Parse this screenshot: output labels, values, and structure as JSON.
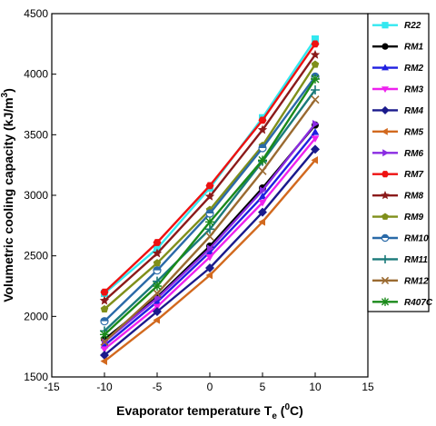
{
  "chart_data": {
    "type": "line",
    "xlabel_main": "Evaporator temperature T",
    "xlabel_sub": "e",
    "xlabel_unit_open": " (",
    "xlabel_unit_sup": "0",
    "xlabel_unit_close": "C)",
    "ylabel_main": "Volumetric cooling capacity (kJ/m",
    "ylabel_sup": "3",
    "ylabel_close": ")",
    "xlim": [
      -15,
      15
    ],
    "ylim": [
      1500,
      4500
    ],
    "x_ticks": [
      "-15",
      "-10",
      "-5",
      "0",
      "5",
      "10",
      "15"
    ],
    "y_ticks": [
      "1500",
      "2000",
      "2500",
      "3000",
      "3500",
      "4000",
      "4500"
    ],
    "grid": false,
    "legend_position": "right",
    "x": [
      -10,
      -5,
      0,
      5,
      10
    ],
    "series": [
      {
        "name": "R22",
        "color": "#33e8f0",
        "marker": "square",
        "values": [
          2190,
          2560,
          3060,
          3640,
          4290
        ]
      },
      {
        "name": "RM1",
        "color": "#000000",
        "marker": "circle",
        "values": [
          1810,
          2160,
          2580,
          3060,
          3580
        ]
      },
      {
        "name": "RM2",
        "color": "#1f1fe0",
        "marker": "triangle-up",
        "values": [
          1760,
          2120,
          2530,
          2990,
          3520
        ]
      },
      {
        "name": "RM3",
        "color": "#ee22ee",
        "marker": "triangle-down",
        "values": [
          1730,
          2080,
          2490,
          2940,
          3470
        ]
      },
      {
        "name": "RM4",
        "color": "#1a1a8c",
        "marker": "diamond",
        "values": [
          1680,
          2040,
          2400,
          2860,
          3380
        ]
      },
      {
        "name": "RM5",
        "color": "#d2691e",
        "marker": "triangle-left",
        "values": [
          1630,
          1970,
          2340,
          2780,
          3290
        ]
      },
      {
        "name": "RM6",
        "color": "#8a2be2",
        "marker": "triangle-right",
        "values": [
          1790,
          2150,
          2560,
          3040,
          3590
        ]
      },
      {
        "name": "RM7",
        "color": "#ee1111",
        "marker": "hexagon",
        "values": [
          2200,
          2610,
          3080,
          3620,
          4250
        ]
      },
      {
        "name": "RM8",
        "color": "#8b1a1a",
        "marker": "star",
        "values": [
          2130,
          2520,
          2990,
          3540,
          4160
        ]
      },
      {
        "name": "RM9",
        "color": "#7f8f1a",
        "marker": "pentagon",
        "values": [
          2060,
          2440,
          2880,
          3410,
          4080
        ]
      },
      {
        "name": "RM10",
        "color": "#2a6aa8",
        "marker": "circle-half",
        "values": [
          1960,
          2380,
          2850,
          3390,
          3980
        ]
      },
      {
        "name": "RM11",
        "color": "#1a7a7a",
        "marker": "plus",
        "values": [
          1880,
          2290,
          2720,
          3280,
          3870
        ]
      },
      {
        "name": "RM12",
        "color": "#9a6a30",
        "marker": "x",
        "values": [
          1790,
          2190,
          2660,
          3200,
          3790
        ]
      },
      {
        "name": "R407C",
        "color": "#1a8a1a",
        "marker": "asterisk",
        "values": [
          1850,
          2250,
          2780,
          3290,
          3960
        ]
      }
    ]
  }
}
